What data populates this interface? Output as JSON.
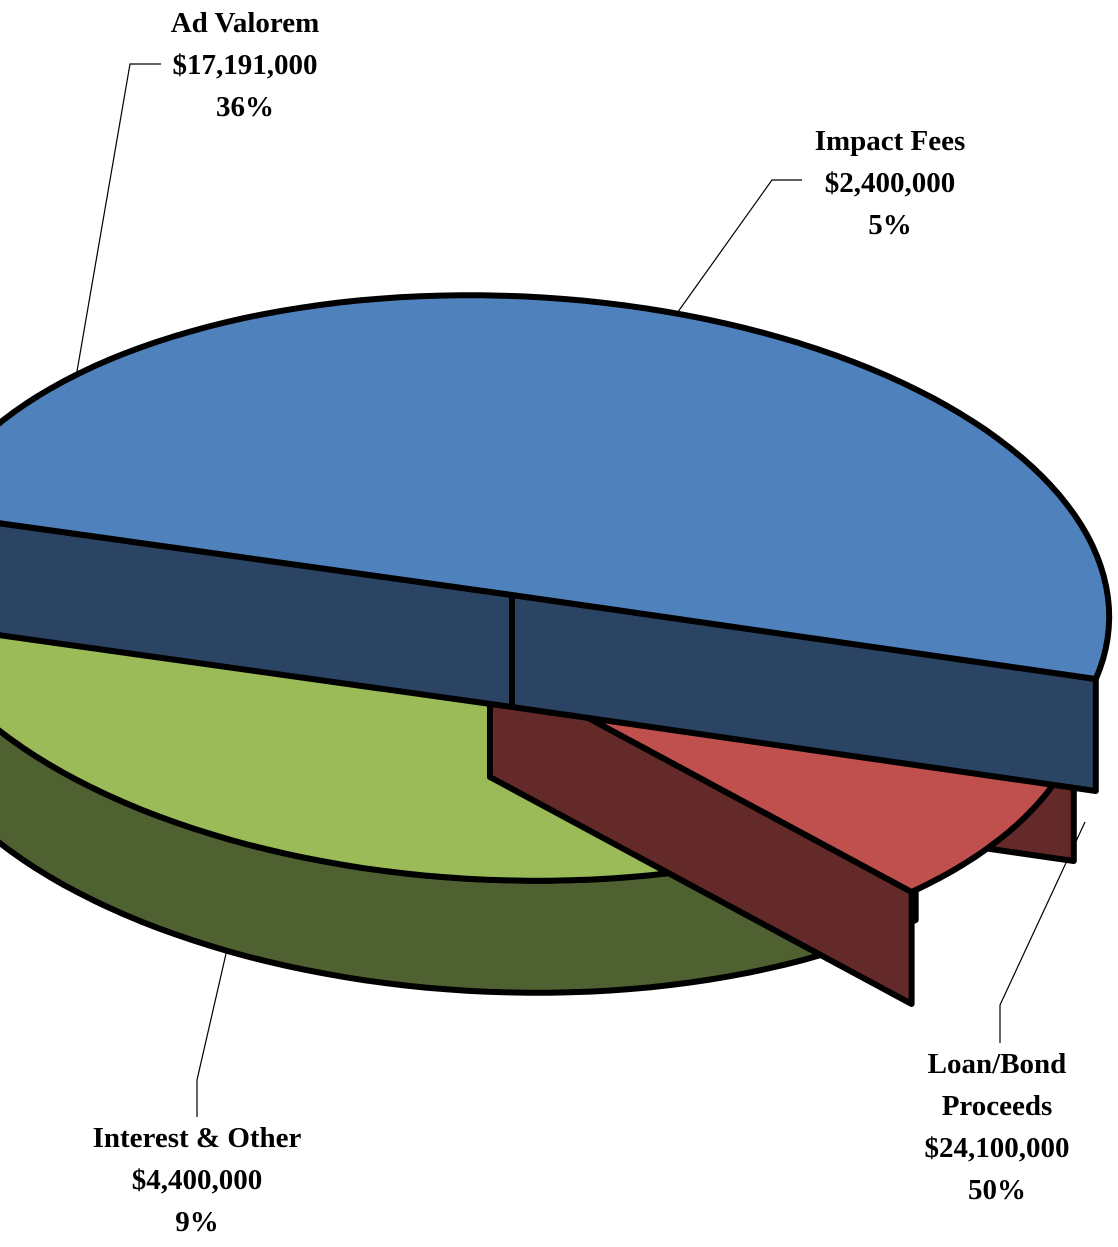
{
  "chart_data": {
    "type": "pie",
    "style": "3d-exploded",
    "currency": "USD",
    "slices": [
      {
        "key": "ad",
        "label": "Ad Valorem",
        "label_lines": [
          "Ad Valorem"
        ],
        "value": 17191000,
        "value_text": "$17,191,000",
        "percent_text": "36%",
        "color": "#9BBB59",
        "side_color": "#4F6130"
      },
      {
        "key": "impact",
        "label": "Impact Fees",
        "label_lines": [
          "Impact Fees"
        ],
        "value": 2400000,
        "value_text": "$2,400,000",
        "percent_text": "5%",
        "color": "#4F81BD",
        "side_color": "#2B4463"
      },
      {
        "key": "loan",
        "label": "Loan/Bond Proceeds",
        "label_lines": [
          "Loan/Bond",
          "Proceeds"
        ],
        "value": 24100000,
        "value_text": "$24,100,000",
        "percent_text": "50%",
        "color": "#4F81BD",
        "side_color": "#2B4463"
      },
      {
        "key": "interest",
        "label": "Interest & Other",
        "label_lines": [
          "Interest & Other"
        ],
        "value": 4400000,
        "value_text": "$4,400,000",
        "percent_text": "9%",
        "color": "#C0504D",
        "side_color": "#632A29"
      }
    ]
  }
}
